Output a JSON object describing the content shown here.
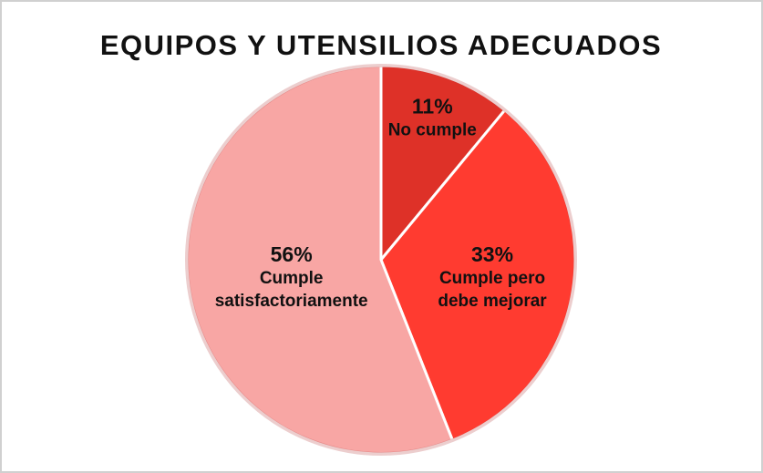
{
  "chart_data": {
    "type": "pie",
    "title": "EQUIPOS Y UTENSILIOS ADECUADOS",
    "categories": [
      "No cumple",
      "Cumple pero debe mejorar",
      "Cumple satisfactoriamente"
    ],
    "values": [
      11,
      33,
      56
    ],
    "value_labels": [
      "11%",
      "33%",
      "56%"
    ],
    "colors": [
      "#de3128",
      "#ff3b30",
      "#f8a6a4"
    ]
  }
}
